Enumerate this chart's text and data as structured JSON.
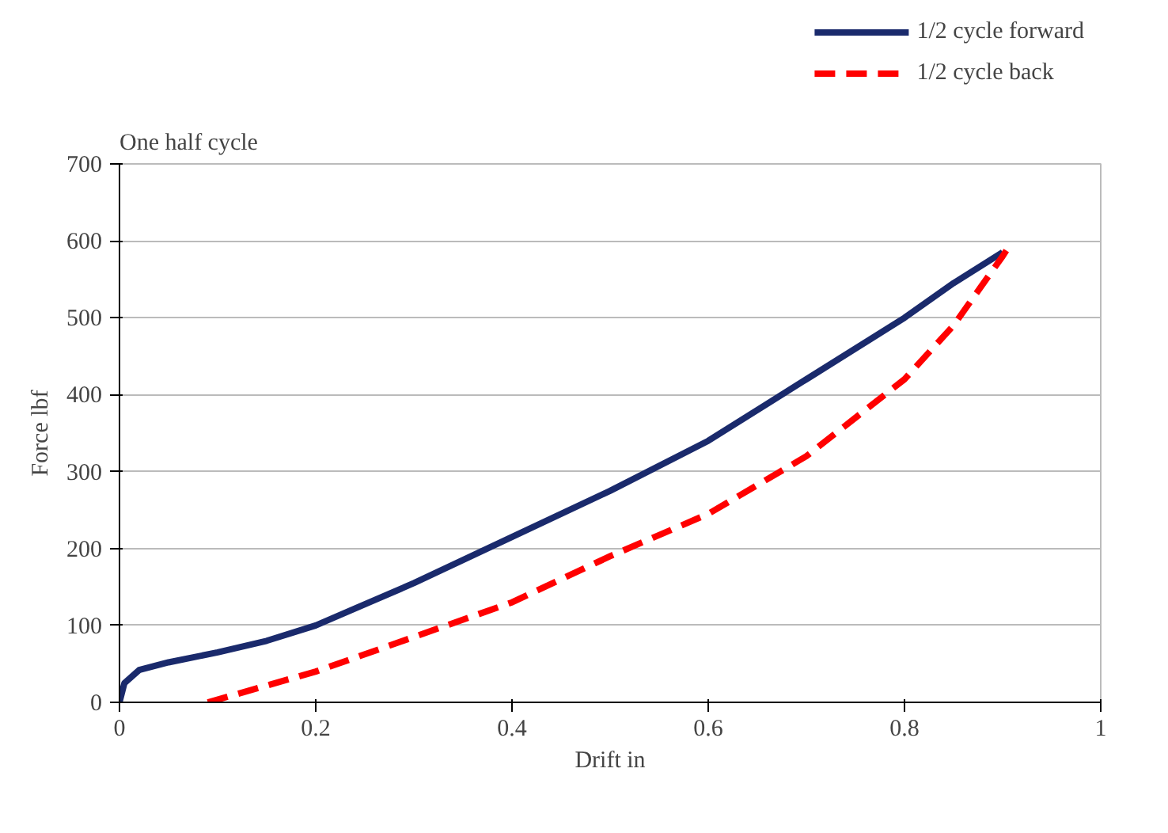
{
  "chart_data": {
    "type": "line",
    "title": "One half cycle",
    "xlabel": "Drift in",
    "ylabel": "Force lbf",
    "xlim": [
      0,
      1
    ],
    "xticks": [
      0,
      0.2,
      0.4,
      0.6,
      0.8,
      1
    ],
    "ylim": [
      0,
      700
    ],
    "yticks": [
      0,
      100,
      200,
      300,
      400,
      500,
      600,
      700
    ],
    "grid": "y",
    "legend": "top right",
    "series": [
      {
        "name": "1/2 cycle forward",
        "color": "#1a2a6c",
        "line_style": "solid",
        "x": [
          0,
          0.005,
          0.02,
          0.05,
          0.1,
          0.15,
          0.2,
          0.3,
          0.4,
          0.5,
          0.6,
          0.7,
          0.8,
          0.85,
          0.9
        ],
        "values": [
          0,
          25,
          42,
          52,
          65,
          80,
          100,
          155,
          215,
          275,
          340,
          420,
          500,
          545,
          585
        ]
      },
      {
        "name": "1/2 cycle back",
        "color": "#ff0000",
        "line_style": "dashed",
        "x": [
          0.09,
          0.2,
          0.3,
          0.4,
          0.5,
          0.6,
          0.7,
          0.8,
          0.85,
          0.9,
          0.905
        ],
        "values": [
          0,
          40,
          85,
          130,
          190,
          245,
          320,
          420,
          490,
          580,
          590
        ]
      }
    ]
  }
}
